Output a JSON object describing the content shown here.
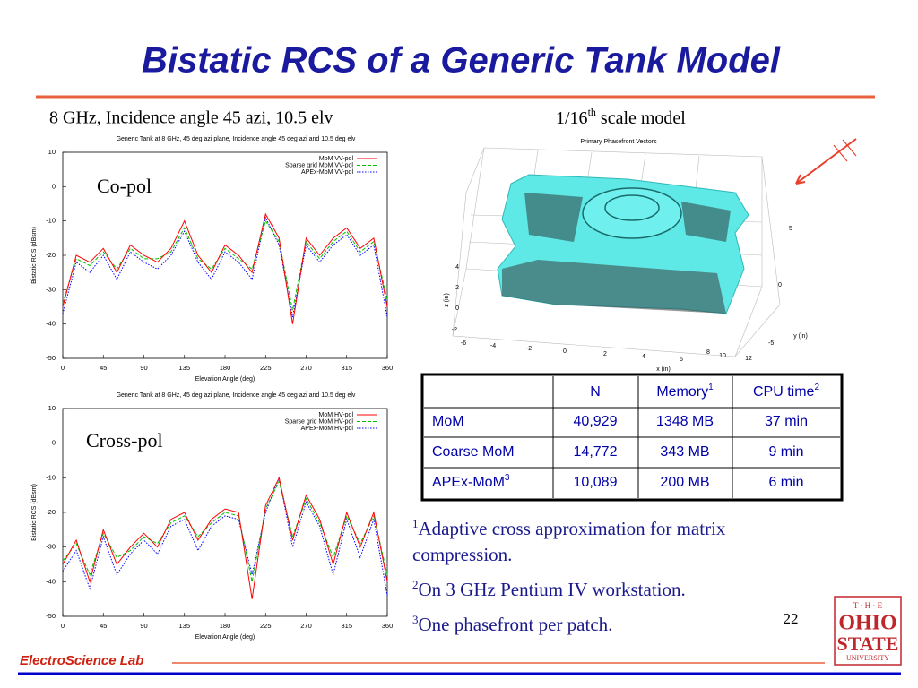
{
  "title": "Bistatic RCS of a Generic Tank Model",
  "left_caption": "8 GHz, Incidence angle 45 azi, 10.5 elv",
  "right_caption": {
    "text": "1/16",
    "sup": "th",
    "rest": " scale model"
  },
  "chart_data": [
    {
      "type": "line",
      "title": "Generic Tank at 8 GHz, 45 deg azi plane, Incidence angle 45 deg azi and 10.5 deg elv",
      "annotation": "Co-pol",
      "x_label": "Elevation Angle (deg)",
      "y_label": "Bistatic RCS (dBsm)",
      "x": [
        0,
        15,
        30,
        45,
        60,
        75,
        90,
        105,
        120,
        135,
        150,
        165,
        180,
        195,
        210,
        225,
        240,
        255,
        270,
        285,
        300,
        315,
        330,
        345,
        360
      ],
      "xlim": [
        0,
        360
      ],
      "xticks": [
        0,
        45,
        90,
        135,
        180,
        225,
        270,
        315,
        360
      ],
      "ylim": [
        -50,
        10
      ],
      "yticks": [
        -50,
        -40,
        -30,
        -20,
        -10,
        0,
        10
      ],
      "grid": false,
      "legend": "upper right",
      "series": [
        {
          "name": "MoM VV-pol",
          "color": "#ff0000",
          "values": [
            -35,
            -20,
            -22,
            -18,
            -25,
            -17,
            -20,
            -22,
            -18,
            -10,
            -20,
            -25,
            -17,
            -20,
            -25,
            -8,
            -15,
            -40,
            -15,
            -20,
            -15,
            -12,
            -18,
            -15,
            -35
          ]
        },
        {
          "name": "Sparse grid MoM VV-pol",
          "color": "#00c000",
          "values": [
            -34,
            -21,
            -23,
            -19,
            -24,
            -18,
            -21,
            -21,
            -19,
            -12,
            -21,
            -24,
            -18,
            -21,
            -24,
            -10,
            -16,
            -36,
            -16,
            -21,
            -16,
            -13,
            -19,
            -16,
            -33
          ]
        },
        {
          "name": "APEx-MoM VV-pol",
          "color": "#0000ff",
          "values": [
            -37,
            -22,
            -25,
            -20,
            -27,
            -19,
            -22,
            -24,
            -20,
            -13,
            -22,
            -27,
            -19,
            -22,
            -27,
            -9,
            -17,
            -38,
            -17,
            -22,
            -17,
            -14,
            -20,
            -17,
            -38
          ]
        }
      ]
    },
    {
      "type": "line",
      "title": "Generic Tank at 8 GHz, 45 deg azi plane, Incidence angle 45 deg azi and 10.5 deg elv",
      "annotation": "Cross-pol",
      "x_label": "Elevation Angle (deg)",
      "y_label": "Bistatic RCS (dBsm)",
      "x": [
        0,
        15,
        30,
        45,
        60,
        75,
        90,
        105,
        120,
        135,
        150,
        165,
        180,
        195,
        210,
        225,
        240,
        255,
        270,
        285,
        300,
        315,
        330,
        345,
        360
      ],
      "xlim": [
        0,
        360
      ],
      "xticks": [
        0,
        45,
        90,
        135,
        180,
        225,
        270,
        315,
        360
      ],
      "ylim": [
        -50,
        10
      ],
      "yticks": [
        -50,
        -40,
        -30,
        -20,
        -10,
        0,
        10
      ],
      "grid": false,
      "legend": "upper right",
      "series": [
        {
          "name": "MoM HV-pol",
          "color": "#ff0000",
          "values": [
            -35,
            -28,
            -40,
            -25,
            -35,
            -30,
            -26,
            -30,
            -22,
            -20,
            -28,
            -22,
            -19,
            -20,
            -45,
            -18,
            -10,
            -28,
            -15,
            -22,
            -35,
            -20,
            -30,
            -20,
            -40
          ]
        },
        {
          "name": "Sparse grid MoM HV-pol",
          "color": "#00c000",
          "values": [
            -34,
            -29,
            -38,
            -26,
            -33,
            -31,
            -27,
            -29,
            -23,
            -21,
            -27,
            -23,
            -20,
            -21,
            -40,
            -19,
            -11,
            -27,
            -16,
            -23,
            -33,
            -21,
            -29,
            -21,
            -38
          ]
        },
        {
          "name": "APEx-MoM HV-pol",
          "color": "#0000ff",
          "values": [
            -37,
            -31,
            -42,
            -27,
            -38,
            -32,
            -28,
            -32,
            -24,
            -22,
            -31,
            -24,
            -21,
            -22,
            -38,
            -20,
            -10,
            -30,
            -17,
            -24,
            -38,
            -22,
            -33,
            -22,
            -44
          ]
        }
      ]
    }
  ],
  "model_plot": {
    "title": "Primary Phasefront Vectors",
    "x_label": "x (in)",
    "y_label": "y (in)",
    "z_label": "z (in)",
    "x_ticks": [
      -6,
      -4,
      -2,
      0,
      2,
      4,
      6,
      8,
      10,
      12
    ],
    "y_ticks": [
      5,
      0,
      -5
    ],
    "z_ticks": [
      4,
      2,
      0,
      -2
    ]
  },
  "table": {
    "header": [
      {
        "text": "N"
      },
      {
        "text": "Memory",
        "sup": "1"
      },
      {
        "text": "CPU time",
        "sup": "2"
      }
    ],
    "rows": [
      {
        "label": "MoM",
        "cells": [
          "40,929",
          "1348 MB",
          "37 min"
        ]
      },
      {
        "label": "Coarse MoM",
        "cells": [
          "14,772",
          "343 MB",
          "9 min"
        ]
      },
      {
        "label": "APEx-MoM",
        "sup": "3",
        "cells": [
          "10,089",
          "200 MB",
          "6 min"
        ]
      }
    ]
  },
  "footnotes": [
    {
      "mark": "1",
      "text": "Adaptive cross approximation for matrix compression."
    },
    {
      "mark": "2",
      "text": "On 3 GHz Pentium IV workstation."
    },
    {
      "mark": "3",
      "text": "One phasefront per patch."
    }
  ],
  "page_number": "22",
  "footer": "ElectroScience Lab",
  "logo": {
    "top": "T · H · E",
    "line1": "OHIO",
    "line2": "STATE",
    "bottom": "UNIVERSITY"
  }
}
